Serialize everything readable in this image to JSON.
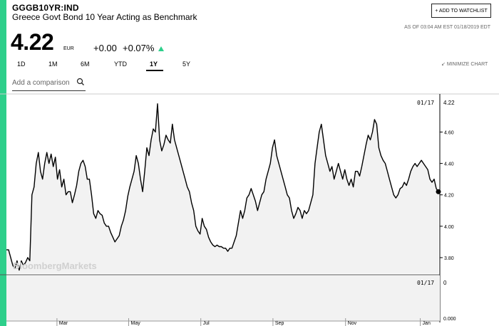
{
  "header": {
    "ticker": "GGGB10YR:IND",
    "name": "Greece Govt Bond 10 Year Acting as Benchmark",
    "watchlist_label": "+ ADD TO WATCHLIST",
    "as_of": "AS OF 03:04 AM EST 01/18/2019 EDT"
  },
  "quote": {
    "price": "4.22",
    "currency": "EUR",
    "change": "+0.00",
    "change_pct": "+0.07%",
    "direction": "up"
  },
  "range_tabs": [
    {
      "label": "1D"
    },
    {
      "label": "1M"
    },
    {
      "label": "6M"
    },
    {
      "label": "YTD"
    },
    {
      "label": "1Y",
      "active": true
    },
    {
      "label": "5Y"
    }
  ],
  "minimize_label": "MINIMIZE CHART",
  "comparison": {
    "placeholder": "Add a comparison"
  },
  "watermark": "BloombergMarkets",
  "colors": {
    "accent": "#2ecf8b",
    "line": "#000000",
    "fill": "#f2f2f2"
  },
  "chart_data": {
    "type": "area",
    "x_tick_labels": [
      "Mar",
      "May",
      "Jul",
      "Sep",
      "Nov",
      "Jan"
    ],
    "y_tick_labels": [
      "3.80",
      "4.00",
      "4.20",
      "4.40",
      "4.60"
    ],
    "ylim": [
      3.7,
      4.82
    ],
    "current_flag": {
      "date": "01/17",
      "value": "4.22"
    },
    "volume_flag": {
      "date": "01/17",
      "value": "0"
    },
    "volume_axis_label": "0.000",
    "series": [
      {
        "values": [
          3.85,
          3.85,
          3.8,
          3.75,
          3.73,
          3.78,
          3.72,
          3.78,
          3.75,
          3.77,
          3.8,
          3.78,
          4.2,
          4.25,
          4.4,
          4.47,
          4.35,
          4.3,
          4.4,
          4.47,
          4.4,
          4.46,
          4.38,
          4.44,
          4.3,
          4.36,
          4.25,
          4.3,
          4.2,
          4.22,
          4.22,
          4.15,
          4.2,
          4.26,
          4.35,
          4.4,
          4.42,
          4.38,
          4.3,
          4.3,
          4.2,
          4.08,
          4.05,
          4.1,
          4.08,
          4.07,
          4.02,
          4.0,
          4.0,
          3.96,
          3.93,
          3.9,
          3.92,
          3.94,
          4.0,
          4.04,
          4.1,
          4.19,
          4.25,
          4.3,
          4.35,
          4.45,
          4.4,
          4.3,
          4.22,
          4.35,
          4.5,
          4.45,
          4.55,
          4.62,
          4.6,
          4.78,
          4.55,
          4.48,
          4.52,
          4.58,
          4.55,
          4.53,
          4.65,
          4.55,
          4.5,
          4.45,
          4.4,
          4.35,
          4.3,
          4.25,
          4.22,
          4.15,
          4.1,
          4.0,
          3.97,
          3.95,
          4.05,
          4.0,
          3.98,
          3.93,
          3.9,
          3.88,
          3.87,
          3.88,
          3.87,
          3.87,
          3.86,
          3.86,
          3.84,
          3.86,
          3.86,
          3.9,
          3.94,
          4.02,
          4.1,
          4.05,
          4.1,
          4.18,
          4.2,
          4.24,
          4.2,
          4.16,
          4.1,
          4.15,
          4.2,
          4.22,
          4.3,
          4.35,
          4.4,
          4.5,
          4.55,
          4.45,
          4.4,
          4.35,
          4.3,
          4.25,
          4.2,
          4.18,
          4.1,
          4.05,
          4.08,
          4.12,
          4.1,
          4.05,
          4.1,
          4.08,
          4.1,
          4.15,
          4.2,
          4.4,
          4.5,
          4.6,
          4.65,
          4.55,
          4.45,
          4.4,
          4.35,
          4.38,
          4.3,
          4.35,
          4.4,
          4.35,
          4.3,
          4.36,
          4.3,
          4.26,
          4.3,
          4.25,
          4.35,
          4.35,
          4.32,
          4.38,
          4.45,
          4.52,
          4.58,
          4.55,
          4.6,
          4.68,
          4.65,
          4.5,
          4.45,
          4.42,
          4.4,
          4.35,
          4.3,
          4.25,
          4.2,
          4.18,
          4.2,
          4.24,
          4.25,
          4.28,
          4.26,
          4.3,
          4.35,
          4.38,
          4.4,
          4.38,
          4.4,
          4.42,
          4.4,
          4.38,
          4.36,
          4.3,
          4.28,
          4.3,
          4.24,
          4.22
        ]
      }
    ]
  }
}
